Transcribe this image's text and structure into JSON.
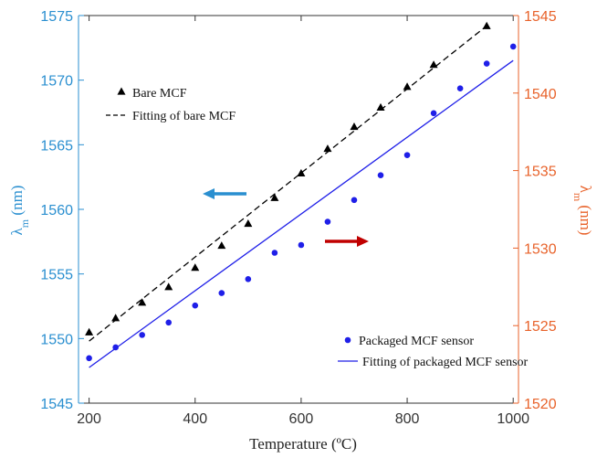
{
  "chart_data": {
    "type": "scatter",
    "xlabel": "Temperature (ºC)",
    "ylabel_left": {
      "main": "λ",
      "sub": "m",
      "unit": " (nm)"
    },
    "ylabel_right": {
      "main": "λ",
      "sub": "m",
      "unit": " (nm)"
    },
    "xlim": [
      180,
      1010
    ],
    "ylim_left": [
      1545,
      1575
    ],
    "ylim_right": [
      1520,
      1545
    ],
    "x_ticks": [
      200,
      400,
      600,
      800,
      1000
    ],
    "y_ticks_left": [
      1545,
      1550,
      1555,
      1560,
      1565,
      1570,
      1575
    ],
    "y_ticks_right": [
      1520,
      1525,
      1530,
      1535,
      1540,
      1545
    ],
    "colors": {
      "left_axis": "#2a8fd0",
      "right_axis": "#e8622a",
      "bare_series": "#000000",
      "packaged_series": "#1f1fe8",
      "left_arrow": "#2a8fd0",
      "right_arrow": "#c00000"
    },
    "series": [
      {
        "name": "Bare MCF",
        "axis": "left",
        "marker": "triangle",
        "x": [
          200,
          250,
          300,
          350,
          400,
          450,
          500,
          550,
          600,
          650,
          700,
          750,
          800,
          850,
          950
        ],
        "y": [
          1550.5,
          1551.6,
          1552.8,
          1554.0,
          1555.5,
          1557.2,
          1558.9,
          1560.9,
          1562.8,
          1564.7,
          1566.4,
          1567.9,
          1569.5,
          1571.2,
          1574.2
        ]
      },
      {
        "name": "Fitting of bare MCF",
        "axis": "left",
        "style": "dashed-line",
        "x": [
          200,
          950
        ],
        "y": [
          1549.8,
          1574.2
        ]
      },
      {
        "name": "Packaged MCF sensor",
        "axis": "right",
        "marker": "circle",
        "x": [
          200,
          250,
          300,
          350,
          400,
          450,
          500,
          550,
          600,
          650,
          700,
          750,
          800,
          850,
          900,
          950,
          1000
        ],
        "y": [
          1522.9,
          1523.6,
          1524.4,
          1525.2,
          1526.3,
          1527.1,
          1528.0,
          1529.7,
          1530.2,
          1531.7,
          1533.1,
          1534.7,
          1536.0,
          1538.7,
          1540.3,
          1541.9,
          1543.0
        ]
      },
      {
        "name": "Fitting of packaged MCF sensor",
        "axis": "right",
        "style": "solid-line",
        "x": [
          200,
          1000
        ],
        "y": [
          1522.3,
          1542.1
        ]
      }
    ],
    "legend": {
      "upper": [
        {
          "label": "Bare MCF",
          "icon": "triangle"
        },
        {
          "label": "Fitting of bare MCF",
          "icon": "dashed-line"
        }
      ],
      "lower": [
        {
          "label": "Packaged MCF sensor",
          "icon": "circle"
        },
        {
          "label": "Fitting of packaged MCF sensor",
          "icon": "solid-line"
        }
      ]
    },
    "annotations": [
      {
        "type": "arrow",
        "direction": "left",
        "indicates_axis": "left"
      },
      {
        "type": "arrow",
        "direction": "right",
        "indicates_axis": "right"
      }
    ]
  }
}
